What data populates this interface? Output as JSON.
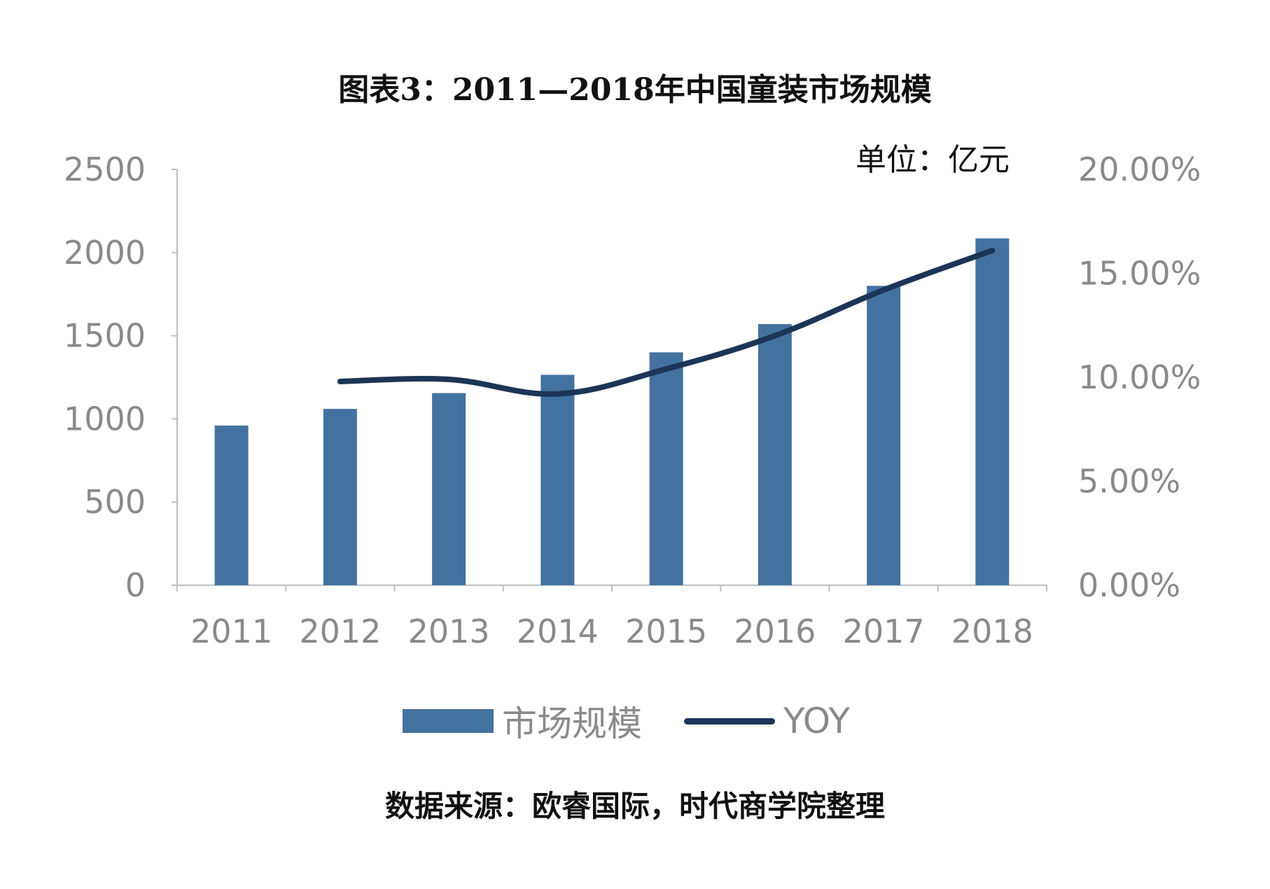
{
  "chart_data": {
    "type": "bar",
    "title": "图表3：2011—2018年中国童装市场规模",
    "unit_label": "单位：亿元",
    "source": "数据来源：欧睿国际，时代商学院整理",
    "categories": [
      "2011",
      "2012",
      "2013",
      "2014",
      "2015",
      "2016",
      "2017",
      "2018"
    ],
    "series": [
      {
        "name": "市场规模",
        "type": "bar",
        "axis": "left",
        "values": [
          960,
          1060,
          1155,
          1265,
          1400,
          1570,
          1800,
          2085
        ]
      },
      {
        "name": "YOY",
        "type": "line",
        "axis": "right",
        "values": [
          null,
          0.098,
          0.099,
          0.092,
          0.104,
          0.12,
          0.142,
          0.161
        ]
      }
    ],
    "left_axis": {
      "ylim": [
        0,
        2500
      ],
      "ticks": [
        "0",
        "500",
        "1000",
        "1500",
        "2000",
        "2500"
      ]
    },
    "right_axis": {
      "ylim": [
        0,
        0.2
      ],
      "ticks": [
        "0.00%",
        "5.00%",
        "10.00%",
        "15.00%",
        "20.00%"
      ]
    },
    "grid": false,
    "legend": "bottom",
    "colors": {
      "bar": "#4472a0",
      "line": "#1c3557",
      "axis": "#bfbfbf",
      "tick_text": "#8a8a8a"
    }
  }
}
